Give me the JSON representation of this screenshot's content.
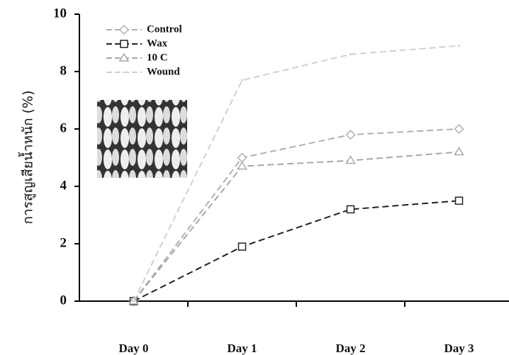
{
  "chart_data": {
    "type": "line",
    "y_label": "การสูญเสียน้ำหนัก (%)",
    "categories": [
      "Day 0",
      "Day 1",
      "Day 2",
      "Day 3"
    ],
    "ylim": [
      0,
      10
    ],
    "yticks": [
      0,
      2,
      4,
      6,
      8,
      10
    ],
    "series": [
      {
        "name": "Control",
        "color": "#b0b0b0",
        "marker": "diamond",
        "values": [
          0,
          5.0,
          5.8,
          6.0
        ]
      },
      {
        "name": "Wax",
        "color": "#222222",
        "marker": "square",
        "values": [
          0,
          1.9,
          3.2,
          3.5
        ]
      },
      {
        "name": "10 C",
        "color": "#a8a8a8",
        "marker": "triangle",
        "values": [
          0,
          4.7,
          4.9,
          5.2
        ]
      },
      {
        "name": "Wound",
        "color": "#d0d0d0",
        "marker": "none",
        "values": [
          0,
          7.7,
          8.6,
          8.9
        ]
      }
    ]
  }
}
